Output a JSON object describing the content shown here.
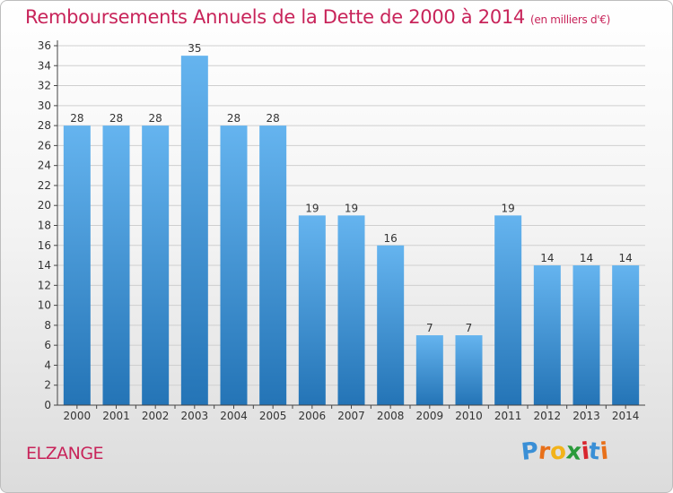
{
  "title": "Remboursements Annuels de la Dette de 2000 à 2014",
  "subtitle": "(en milliers d'€)",
  "town": "ELZANGE",
  "logo": {
    "letters": [
      "P",
      "r",
      "o",
      "x",
      "i",
      "t",
      "i"
    ],
    "colors": [
      "#3a8fd6",
      "#e8701a",
      "#f2b31a",
      "#2a9a3a",
      "#d8262e",
      "#3a8fd6",
      "#e8701a"
    ]
  },
  "colors": {
    "bar_top": "#65b4ef",
    "bar_bottom": "#2474b6",
    "grid": "#cfcfcf",
    "axis": "#444444",
    "text": "#333333"
  },
  "chart_data": {
    "type": "bar",
    "title": "Remboursements Annuels de la Dette de 2000 à 2014",
    "xlabel": "",
    "ylabel": "",
    "categories": [
      "2000",
      "2001",
      "2002",
      "2003",
      "2004",
      "2005",
      "2006",
      "2007",
      "2008",
      "2009",
      "2010",
      "2011",
      "2012",
      "2013",
      "2014"
    ],
    "values": [
      28,
      28,
      28,
      35,
      28,
      28,
      19,
      19,
      16,
      7,
      7,
      19,
      14,
      14,
      14
    ],
    "ylim": [
      0,
      36
    ],
    "yticks": [
      0,
      2,
      4,
      6,
      8,
      10,
      12,
      14,
      16,
      18,
      20,
      22,
      24,
      26,
      28,
      30,
      32,
      34,
      36
    ],
    "grid": true
  }
}
